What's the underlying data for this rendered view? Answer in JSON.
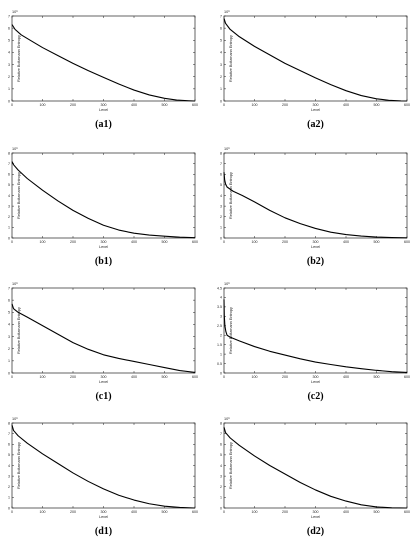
{
  "chart_data": [
    {
      "id": "a1",
      "label": "(a1)",
      "type": "line",
      "exponent": "10⁶",
      "xlabel": "Level",
      "ylabel": "Relative Boltzmann Entropy",
      "xlim": [
        0,
        600
      ],
      "ylim": [
        0,
        7
      ],
      "xticks": [
        "0",
        "100",
        "200",
        "300",
        "400",
        "500",
        "600"
      ],
      "yticks": [
        "0",
        "1",
        "2",
        "3",
        "4",
        "5",
        "6",
        "7"
      ],
      "series": [
        {
          "x": [
            0,
            10,
            30,
            60,
            100,
            150,
            200,
            250,
            300,
            350,
            400,
            450,
            500,
            540,
            580,
            600
          ],
          "y": [
            6.3,
            5.9,
            5.45,
            5.0,
            4.4,
            3.75,
            3.1,
            2.5,
            1.95,
            1.4,
            0.9,
            0.5,
            0.22,
            0.08,
            0.02,
            0.0
          ]
        }
      ]
    },
    {
      "id": "a2",
      "label": "(a2)",
      "type": "line",
      "exponent": "10⁶",
      "xlabel": "Level",
      "ylabel": "Relative Boltzmann Entropy",
      "xlim": [
        0,
        600
      ],
      "ylim": [
        0,
        7
      ],
      "xticks": [
        "0",
        "100",
        "200",
        "300",
        "400",
        "500",
        "600"
      ],
      "yticks": [
        "0",
        "1",
        "2",
        "3",
        "4",
        "5",
        "6",
        "7"
      ],
      "series": [
        {
          "x": [
            0,
            5,
            20,
            50,
            100,
            150,
            200,
            250,
            300,
            350,
            400,
            450,
            500,
            540,
            580,
            600
          ],
          "y": [
            6.8,
            6.4,
            5.9,
            5.3,
            4.5,
            3.8,
            3.1,
            2.5,
            1.9,
            1.35,
            0.85,
            0.45,
            0.18,
            0.06,
            0.01,
            0.0
          ]
        }
      ]
    },
    {
      "id": "b1",
      "label": "(b1)",
      "type": "line",
      "exponent": "10⁶",
      "xlabel": "Level",
      "ylabel": "Relative Boltzmann Entropy",
      "xlim": [
        0,
        600
      ],
      "ylim": [
        0,
        8
      ],
      "xticks": [
        "0",
        "100",
        "200",
        "300",
        "400",
        "500",
        "600"
      ],
      "yticks": [
        "0",
        "1",
        "2",
        "3",
        "4",
        "5",
        "6",
        "7",
        "8"
      ],
      "series": [
        {
          "x": [
            0,
            5,
            20,
            50,
            100,
            150,
            200,
            250,
            300,
            350,
            400,
            450,
            500,
            550,
            600
          ],
          "y": [
            7.2,
            6.9,
            6.4,
            5.6,
            4.5,
            3.5,
            2.6,
            1.85,
            1.2,
            0.75,
            0.45,
            0.28,
            0.17,
            0.08,
            0.03
          ]
        }
      ]
    },
    {
      "id": "b2",
      "label": "(b2)",
      "type": "line",
      "exponent": "10⁶",
      "xlabel": "Level",
      "ylabel": "Relative Boltzmann Entropy",
      "xlim": [
        0,
        600
      ],
      "ylim": [
        0,
        8
      ],
      "xticks": [
        "0",
        "100",
        "200",
        "300",
        "400",
        "500",
        "600"
      ],
      "yticks": [
        "0",
        "1",
        "2",
        "3",
        "4",
        "5",
        "6",
        "7",
        "8"
      ],
      "series": [
        {
          "x": [
            0,
            2,
            5,
            10,
            30,
            60,
            100,
            150,
            200,
            250,
            300,
            350,
            400,
            450,
            500,
            550,
            600
          ],
          "y": [
            6.2,
            5.5,
            5.1,
            4.8,
            4.4,
            4.0,
            3.4,
            2.6,
            1.9,
            1.35,
            0.9,
            0.55,
            0.32,
            0.18,
            0.09,
            0.04,
            0.02
          ]
        }
      ]
    },
    {
      "id": "c1",
      "label": "(c1)",
      "type": "line",
      "exponent": "10⁶",
      "xlabel": "Level",
      "ylabel": "Relative Boltzmann Entropy",
      "xlim": [
        0,
        600
      ],
      "ylim": [
        0,
        7
      ],
      "xticks": [
        "0",
        "100",
        "200",
        "300",
        "400",
        "500",
        "600"
      ],
      "yticks": [
        "0",
        "1",
        "2",
        "3",
        "4",
        "5",
        "6",
        "7"
      ],
      "series": [
        {
          "x": [
            0,
            5,
            20,
            50,
            100,
            150,
            200,
            250,
            300,
            350,
            400,
            450,
            500,
            550,
            600
          ],
          "y": [
            5.7,
            5.3,
            5.0,
            4.6,
            3.9,
            3.2,
            2.5,
            1.95,
            1.5,
            1.2,
            0.95,
            0.7,
            0.45,
            0.2,
            0.05
          ]
        }
      ]
    },
    {
      "id": "c2",
      "label": "(c2)",
      "type": "line",
      "exponent": "10⁶",
      "xlabel": "Level",
      "ylabel": "Relative Boltzmann Entropy",
      "xlim": [
        0,
        600
      ],
      "ylim": [
        0,
        4.5
      ],
      "xticks": [
        "0",
        "100",
        "200",
        "300",
        "400",
        "500",
        "600"
      ],
      "yticks": [
        "0",
        "0.5",
        "1",
        "1.5",
        "2",
        "2.5",
        "3",
        "3.5",
        "4",
        "4.5"
      ],
      "series": [
        {
          "x": [
            0,
            1,
            3,
            6,
            10,
            20,
            50,
            100,
            150,
            200,
            250,
            300,
            350,
            400,
            450,
            500,
            550,
            600
          ],
          "y": [
            3.9,
            3.0,
            2.5,
            2.2,
            2.0,
            1.9,
            1.7,
            1.4,
            1.15,
            0.95,
            0.75,
            0.58,
            0.45,
            0.33,
            0.23,
            0.14,
            0.07,
            0.03
          ]
        }
      ]
    },
    {
      "id": "d1",
      "label": "(d1)",
      "type": "line",
      "exponent": "10⁶",
      "xlabel": "Level",
      "ylabel": "Relative Boltzmann Entropy",
      "xlim": [
        0,
        600
      ],
      "ylim": [
        0,
        8
      ],
      "xticks": [
        "0",
        "100",
        "200",
        "300",
        "400",
        "500",
        "600"
      ],
      "yticks": [
        "0",
        "1",
        "2",
        "3",
        "4",
        "5",
        "6",
        "7",
        "8"
      ],
      "series": [
        {
          "x": [
            0,
            5,
            20,
            50,
            100,
            150,
            200,
            250,
            300,
            350,
            400,
            450,
            500,
            550,
            600
          ],
          "y": [
            7.8,
            7.3,
            6.8,
            6.1,
            5.1,
            4.2,
            3.3,
            2.5,
            1.8,
            1.2,
            0.75,
            0.4,
            0.17,
            0.05,
            0.0
          ]
        }
      ]
    },
    {
      "id": "d2",
      "label": "(d2)",
      "type": "line",
      "exponent": "10⁶",
      "xlabel": "Level",
      "ylabel": "Relative Boltzmann Entropy",
      "xlim": [
        0,
        600
      ],
      "ylim": [
        0,
        8
      ],
      "xticks": [
        "0",
        "100",
        "200",
        "300",
        "400",
        "500",
        "600"
      ],
      "yticks": [
        "0",
        "1",
        "2",
        "3",
        "4",
        "5",
        "6",
        "7",
        "8"
      ],
      "series": [
        {
          "x": [
            0,
            5,
            20,
            50,
            100,
            150,
            200,
            250,
            300,
            350,
            400,
            450,
            500,
            550,
            600
          ],
          "y": [
            7.6,
            7.1,
            6.6,
            5.9,
            4.9,
            4.0,
            3.2,
            2.4,
            1.7,
            1.1,
            0.65,
            0.3,
            0.1,
            0.02,
            0.0
          ]
        }
      ]
    }
  ]
}
